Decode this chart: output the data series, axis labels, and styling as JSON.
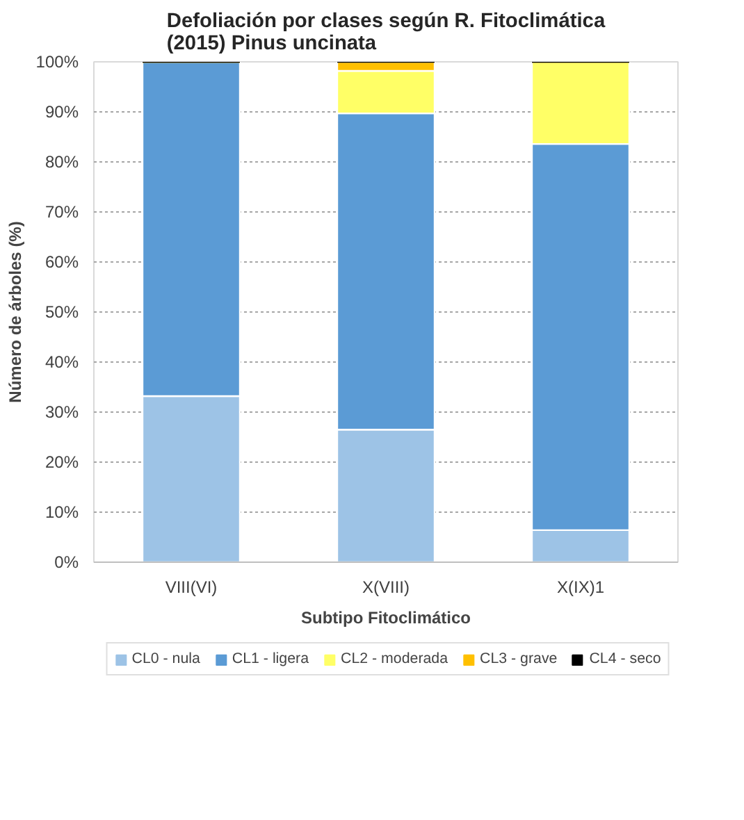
{
  "chart_data": {
    "type": "bar",
    "stacked": true,
    "title": "Defoliación por clases según R. Fitoclimática\n(2015) Pinus uncinata",
    "xlabel": "Subtipo Fitoclimático",
    "ylabel": "Número de árboles (%)",
    "categories": [
      "VIII(VI)",
      "X(VIII)",
      "X(IX)1"
    ],
    "series": [
      {
        "name": "CL0 - nula",
        "color": "#9dc3e6",
        "values": [
          33.2,
          26.5,
          6.4
        ]
      },
      {
        "name": "CL1 - ligera",
        "color": "#5b9bd5",
        "values": [
          66.8,
          63.2,
          77.2
        ]
      },
      {
        "name": "CL2 - moderada",
        "color": "#ffff66",
        "values": [
          0,
          8.5,
          16.4
        ]
      },
      {
        "name": "CL3 - grave",
        "color": "#ffc000",
        "values": [
          0,
          1.8,
          0
        ]
      },
      {
        "name": "CL4 - seco",
        "color": "#000000",
        "values": [
          0,
          0,
          0
        ]
      }
    ],
    "ylim": [
      0,
      100
    ],
    "yticks": [
      {
        "value": 0,
        "label": "0%"
      },
      {
        "value": 10,
        "label": "10%"
      },
      {
        "value": 20,
        "label": "20%"
      },
      {
        "value": 30,
        "label": "30%"
      },
      {
        "value": 40,
        "label": "40%"
      },
      {
        "value": 50,
        "label": "50%"
      },
      {
        "value": 60,
        "label": "60%"
      },
      {
        "value": 70,
        "label": "70%"
      },
      {
        "value": 80,
        "label": "80%"
      },
      {
        "value": 90,
        "label": "90%"
      },
      {
        "value": 100,
        "label": "100%"
      }
    ],
    "grid": "y",
    "legend": "bottom"
  }
}
